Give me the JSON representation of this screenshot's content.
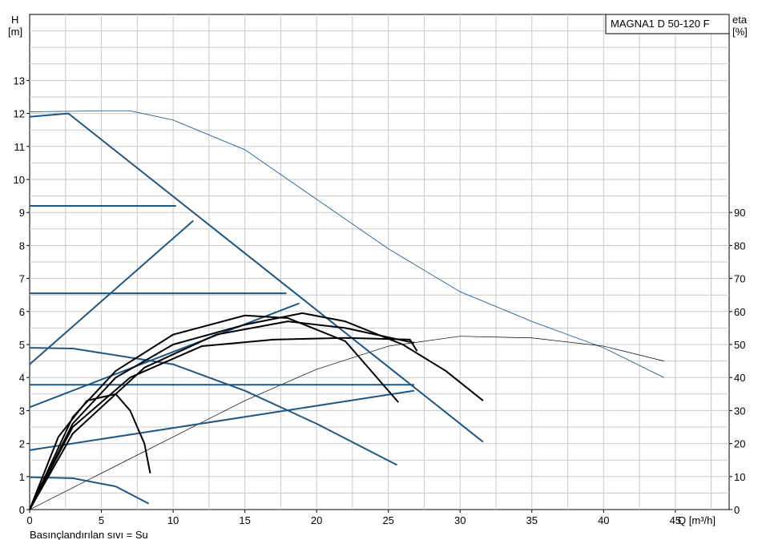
{
  "chart_data": {
    "type": "line",
    "title": "MAGNA1 D 50-120 F",
    "y_label": "H",
    "y_unit": "[m]",
    "y2_label": "eta",
    "y2_unit": "[%]",
    "x_label": "Q [m³/h]",
    "footer": "Basınçlandırılan sıvı = Su",
    "xlim": [
      0,
      48.75
    ],
    "ylim": [
      0,
      15
    ],
    "y2lim": [
      0,
      150
    ],
    "xticks": [
      0,
      5,
      10,
      15,
      20,
      25,
      30,
      35,
      40,
      45
    ],
    "yticks": [
      0,
      1,
      2,
      3,
      4,
      5,
      6,
      7,
      8,
      9,
      10,
      11,
      12,
      13
    ],
    "y2ticks": [
      0,
      10,
      20,
      30,
      40,
      50,
      60,
      70,
      80,
      90
    ],
    "xgrid": [
      2.5,
      5,
      7.5,
      10,
      12.5,
      15,
      17.5,
      20,
      22.5,
      25,
      27.5,
      30,
      32.5,
      35,
      37.5,
      40,
      42.5,
      45,
      47.5
    ],
    "ygrid": [
      0.5,
      1,
      1.5,
      2,
      2.5,
      3,
      3.5,
      4,
      4.5,
      5,
      5.5,
      6,
      6.5,
      7,
      7.5,
      8,
      8.5,
      9,
      9.5,
      10,
      10.5,
      11,
      11.5,
      12,
      12.5,
      13,
      13.5,
      14,
      14.5
    ],
    "grid": true,
    "series": [
      {
        "color": "#2a5f8f",
        "line_width": 0.9,
        "x": [
          0,
          5,
          7,
          10,
          15,
          20,
          25,
          30,
          35,
          40,
          44.2
        ],
        "values": [
          12.05,
          12.08,
          12.08,
          11.8,
          10.9,
          9.4,
          7.9,
          6.6,
          5.7,
          4.9,
          4.0
        ]
      },
      {
        "color": "#000000",
        "line_width": 0.7,
        "axis": "y2",
        "x": [
          0,
          5,
          10,
          15,
          20,
          25,
          30,
          35,
          40,
          44.2
        ],
        "values": [
          0,
          11,
          22,
          33,
          42.5,
          49.5,
          52.5,
          52,
          49.5,
          45
        ]
      },
      {
        "color": "#1f5784",
        "line_width": 2,
        "x": [
          0,
          2.7,
          31.6
        ],
        "values": [
          11.9,
          12,
          2.05
        ]
      },
      {
        "color": "#1f5784",
        "line_width": 2,
        "x": [
          0,
          10.2
        ],
        "values": [
          9.2,
          9.2
        ]
      },
      {
        "color": "#1f5784",
        "line_width": 2,
        "x": [
          0,
          17.9
        ],
        "values": [
          6.55,
          6.55
        ]
      },
      {
        "color": "#1f5784",
        "line_width": 2,
        "x": [
          0,
          26.8
        ],
        "values": [
          3.78,
          3.78
        ]
      },
      {
        "color": "#1f5784",
        "line_width": 2,
        "x": [
          0,
          11.4
        ],
        "values": [
          4.4,
          8.75
        ]
      },
      {
        "color": "#1f5784",
        "line_width": 2,
        "x": [
          0,
          18.8
        ],
        "values": [
          3.1,
          6.25
        ]
      },
      {
        "color": "#1f5784",
        "line_width": 2,
        "x": [
          0,
          26.8
        ],
        "values": [
          1.8,
          3.6
        ]
      },
      {
        "color": "#1f5784",
        "line_width": 2,
        "x": [
          0,
          3,
          10,
          15,
          20,
          25.6
        ],
        "values": [
          4.9,
          4.88,
          4.4,
          3.6,
          2.6,
          1.35
        ]
      },
      {
        "color": "#1f5784",
        "line_width": 2,
        "x": [
          0,
          3,
          6,
          8.3
        ],
        "values": [
          0.98,
          0.95,
          0.7,
          0.18
        ]
      },
      {
        "color": "#000000",
        "line_width": 2,
        "x": [
          0,
          2,
          4,
          6,
          7,
          8,
          8.4
        ],
        "values": [
          0,
          2.2,
          3.3,
          3.5,
          3.0,
          2.0,
          1.1
        ]
      },
      {
        "color": "#000000",
        "line_width": 2,
        "x": [
          0,
          3,
          6,
          10,
          15,
          19,
          22,
          26,
          29,
          31.6
        ],
        "values": [
          0,
          2.6,
          4.0,
          5.0,
          5.6,
          5.95,
          5.7,
          5.0,
          4.2,
          3.3
        ]
      },
      {
        "color": "#000000",
        "line_width": 2,
        "x": [
          0,
          3,
          6,
          10,
          15,
          18,
          22,
          25.7
        ],
        "values": [
          0,
          2.8,
          4.2,
          5.3,
          5.88,
          5.8,
          5.1,
          3.25
        ]
      },
      {
        "color": "#000000",
        "line_width": 2,
        "x": [
          0,
          3,
          7,
          12,
          17,
          22,
          26.5,
          27
        ],
        "values": [
          0,
          2.5,
          4.0,
          4.95,
          5.15,
          5.2,
          5.15,
          4.8
        ]
      },
      {
        "color": "#000000",
        "line_width": 2,
        "x": [
          0,
          3,
          8,
          13,
          18,
          22,
          26.8
        ],
        "values": [
          0,
          2.3,
          4.3,
          5.3,
          5.7,
          5.5,
          5.05
        ]
      }
    ]
  }
}
